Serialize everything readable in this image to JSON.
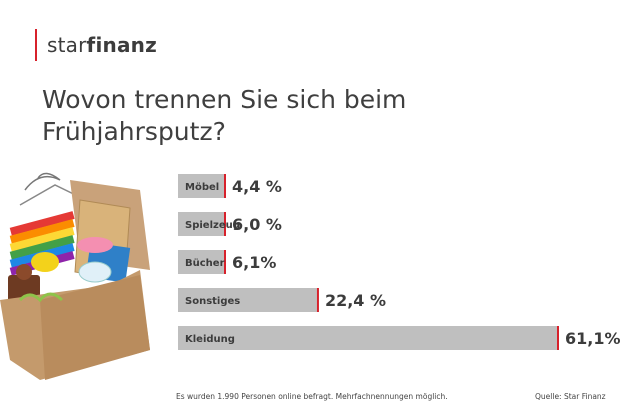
{
  "brand": {
    "prefix": "star",
    "name": "finanz",
    "accent": "#d7212b"
  },
  "title": "Wovon trennen Sie sich beim Frühjahrsputz?",
  "chart_data": {
    "type": "bar",
    "orientation": "horizontal",
    "categories": [
      "Möbel",
      "Spielzeug",
      "Bücher",
      "Sonstiges",
      "Kleidung"
    ],
    "values": [
      4.4,
      6.0,
      6.1,
      22.4,
      61.1
    ],
    "value_labels": [
      "4,4 %",
      "6,0 %",
      "6,1%",
      "22,4 %",
      "61,1%"
    ],
    "unit": "%",
    "bar_color": "#bfbfbf",
    "marker_color": "#d7212b",
    "grid": false,
    "legend": "none"
  },
  "footnote": "Es wurden 1.990 Personen online befragt. Mehrfachnennungen möglich.",
  "source": "Quelle: Star Finanz",
  "illustration": "box-of-household-items"
}
